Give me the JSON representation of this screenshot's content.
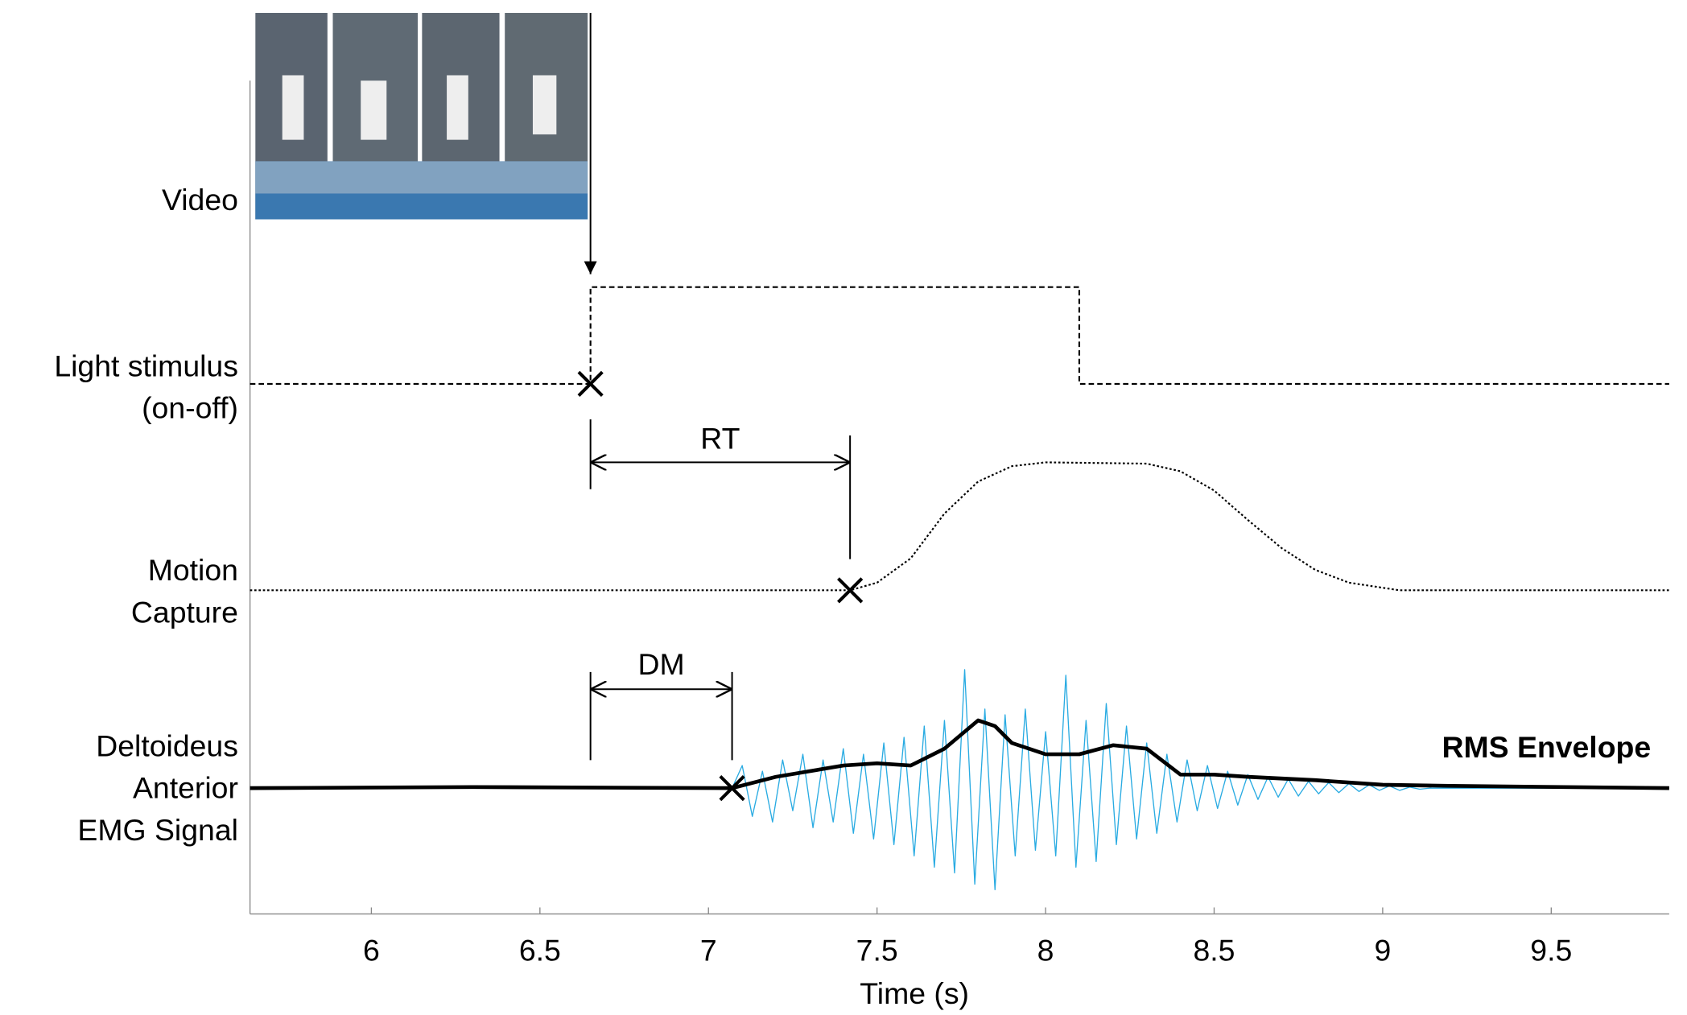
{
  "chart_data": {
    "type": "line",
    "x_label": "Time (s)",
    "xlim": [
      5.64,
      9.85
    ],
    "xticks": [
      6,
      6.5,
      7,
      7.5,
      8,
      8.5,
      9,
      9.5
    ],
    "video_label": "Video",
    "series": [
      {
        "name": [
          "Light stimulus",
          "(on-off)"
        ],
        "color": "#000000",
        "style": "dashed",
        "x": [
          5.64,
          6.65,
          6.65,
          8.1,
          8.1,
          9.85
        ],
        "values": [
          0,
          0,
          1,
          1,
          0,
          0
        ],
        "ylim": [
          0,
          1
        ]
      },
      {
        "name": [
          "Motion",
          "Capture"
        ],
        "color": "#000000",
        "style": "dotted",
        "x": [
          5.64,
          7.42,
          7.5,
          7.6,
          7.7,
          7.8,
          7.9,
          8.0,
          8.3,
          8.4,
          8.5,
          8.6,
          8.7,
          8.8,
          8.9,
          9.05,
          9.85
        ],
        "values": [
          0,
          0,
          0.06,
          0.25,
          0.6,
          0.85,
          0.97,
          1,
          0.99,
          0.93,
          0.78,
          0.55,
          0.33,
          0.16,
          0.06,
          0,
          0
        ],
        "ylim": [
          0,
          1
        ]
      },
      {
        "name": [
          "Deltoideus",
          "Anterior",
          "EMG Signal"
        ],
        "color": "#29abe2",
        "style": "thin",
        "x": [
          5.9,
          7.07,
          7.1,
          7.13,
          7.16,
          7.19,
          7.22,
          7.25,
          7.28,
          7.31,
          7.34,
          7.37,
          7.4,
          7.43,
          7.46,
          7.49,
          7.52,
          7.55,
          7.58,
          7.61,
          7.64,
          7.67,
          7.7,
          7.73,
          7.76,
          7.79,
          7.82,
          7.85,
          7.88,
          7.91,
          7.94,
          7.97,
          8.0,
          8.03,
          8.06,
          8.09,
          8.12,
          8.15,
          8.18,
          8.21,
          8.24,
          8.27,
          8.3,
          8.33,
          8.36,
          8.39,
          8.42,
          8.45,
          8.48,
          8.51,
          8.54,
          8.57,
          8.6,
          8.63,
          8.66,
          8.69,
          8.72,
          8.75,
          8.78,
          8.81,
          8.84,
          8.87,
          8.9,
          8.93,
          8.96,
          8.99,
          9.02,
          9.05,
          9.08,
          9.11,
          9.14,
          9.85
        ],
        "values": [
          0,
          0,
          0.2,
          -0.25,
          0.15,
          -0.3,
          0.25,
          -0.2,
          0.3,
          -0.35,
          0.25,
          -0.3,
          0.35,
          -0.4,
          0.3,
          -0.45,
          0.4,
          -0.5,
          0.45,
          -0.6,
          0.55,
          -0.7,
          0.6,
          -0.75,
          1.05,
          -0.85,
          0.7,
          -0.9,
          0.65,
          -0.6,
          0.7,
          -0.55,
          0.5,
          -0.6,
          1.0,
          -0.7,
          0.6,
          -0.65,
          0.75,
          -0.5,
          0.55,
          -0.45,
          0.4,
          -0.4,
          0.3,
          -0.3,
          0.25,
          -0.2,
          0.2,
          -0.18,
          0.15,
          -0.15,
          0.12,
          -0.1,
          0.1,
          -0.08,
          0.08,
          -0.07,
          0.06,
          -0.05,
          0.05,
          -0.04,
          0.04,
          -0.03,
          0.03,
          -0.02,
          0.02,
          -0.02,
          0.01,
          -0.01,
          0,
          0
        ],
        "ylim": [
          -1,
          1
        ]
      },
      {
        "name": "RMS Envelope",
        "color": "#000000",
        "style": "thick",
        "x": [
          5.64,
          6.3,
          7.07,
          7.2,
          7.4,
          7.5,
          7.6,
          7.7,
          7.8,
          7.85,
          7.9,
          8.0,
          8.1,
          8.2,
          8.3,
          8.4,
          8.5,
          8.6,
          8.8,
          9.0,
          9.2,
          9.85
        ],
        "values": [
          0,
          0.01,
          0,
          0.1,
          0.2,
          0.22,
          0.2,
          0.35,
          0.6,
          0.55,
          0.4,
          0.3,
          0.3,
          0.38,
          0.35,
          0.12,
          0.12,
          0.1,
          0.07,
          0.03,
          0.02,
          0
        ],
        "ylim": [
          -1,
          1
        ]
      }
    ],
    "markers": [
      6.65,
      7.42,
      7.07
    ],
    "intervals": [
      {
        "label": "RT",
        "start": 6.65,
        "end": 7.42
      },
      {
        "label": "DM",
        "start": 6.65,
        "end": 7.07
      }
    ]
  }
}
